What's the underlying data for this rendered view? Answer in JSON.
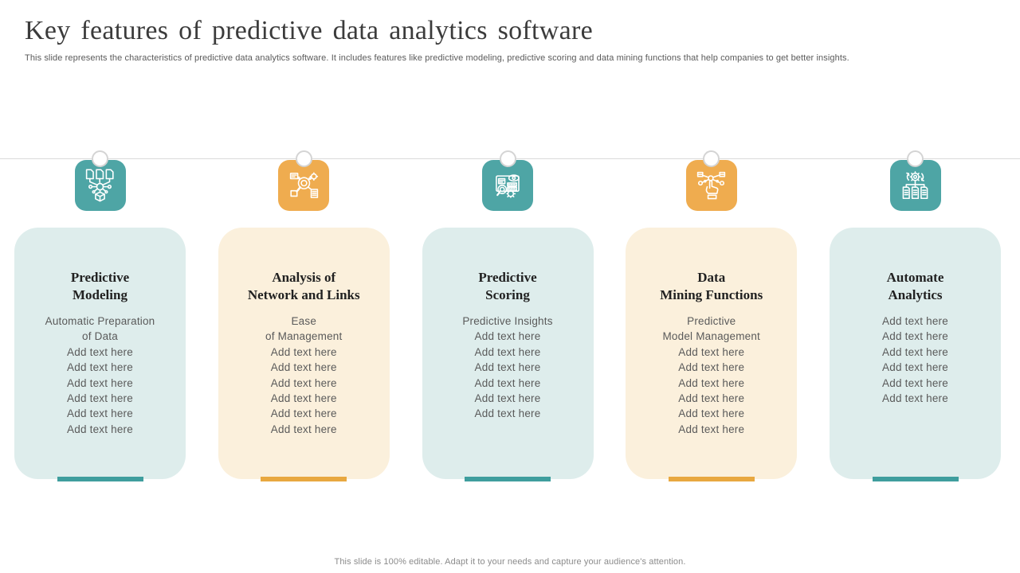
{
  "slide": {
    "title": "Key features of predictive data analytics software",
    "subtitle": "This slide represents the characteristics of predictive data analytics software. It includes features like predictive modeling, predictive scoring and data mining functions that help companies to get better insights.",
    "footer": "This slide is 100% editable. Adapt it to your needs and capture your audience's attention."
  },
  "colors": {
    "icon_teal": "#4EA5A5",
    "icon_orange": "#EFAC4F",
    "card_teal_bg": "#DEEDEC",
    "card_cream_bg": "#FBF0DC",
    "bar_teal": "#3F9E9E",
    "bar_orange": "#E8A840",
    "timeline_gray": "#DADADA",
    "title_text": "#3B3B3B",
    "heading_text": "#212121",
    "body_text": "#5A5A5A"
  },
  "features": [
    {
      "id": "predictive-modeling",
      "theme": "teal",
      "icon": "documents-brain-cube-icon",
      "title_lines": [
        "Predictive",
        "Modeling"
      ],
      "body_lines": [
        "Automatic Preparation",
        "of Data",
        "Add text here",
        "Add text here",
        "Add text here",
        "Add text here",
        "Add text here",
        "Add text here"
      ]
    },
    {
      "id": "analysis-of-network-and-links",
      "theme": "orange",
      "icon": "magnifier-network-icon",
      "title_lines": [
        "Analysis of",
        "Network and Links"
      ],
      "body_lines": [
        "Ease",
        "of Management",
        "Add text here",
        "Add text here",
        "Add text here",
        "Add text here",
        "Add text here",
        "Add text here"
      ]
    },
    {
      "id": "predictive-scoring",
      "theme": "teal",
      "icon": "screen-eye-magnifier-icon",
      "title_lines": [
        "Predictive",
        "Scoring"
      ],
      "body_lines": [
        "Predictive Insights",
        "Add text here",
        "Add text here",
        "Add text here",
        "Add text here",
        "Add text here",
        "Add text here"
      ]
    },
    {
      "id": "data-mining-functions",
      "theme": "orange",
      "icon": "hand-touch-network-icon",
      "title_lines": [
        "Data",
        "Mining Functions"
      ],
      "body_lines": [
        "Predictive",
        "Model Management",
        "Add text here",
        "Add text here",
        "Add text here",
        "Add text here",
        "Add text here",
        "Add text here"
      ]
    },
    {
      "id": "automate-analytics",
      "theme": "teal",
      "icon": "gear-sync-documents-icon",
      "title_lines": [
        "Automate",
        "Analytics"
      ],
      "body_lines": [
        "Add text here",
        "Add text here",
        "Add text here",
        "Add text here",
        "Add text here",
        "Add text here"
      ]
    }
  ]
}
